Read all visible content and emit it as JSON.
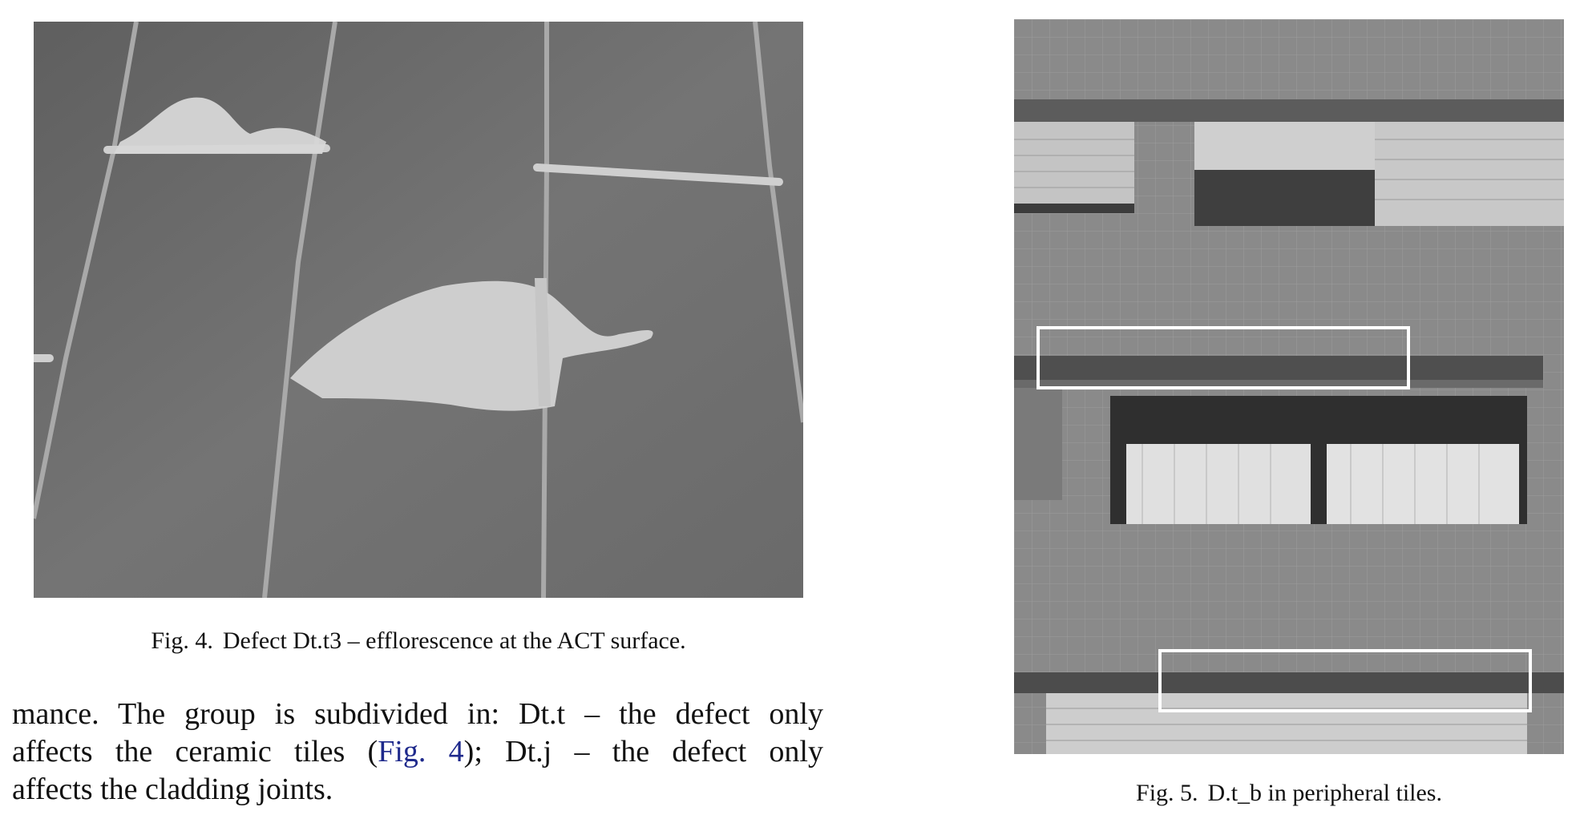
{
  "figures": [
    {
      "label": "Fig. 4.",
      "caption": "Defect Dt.t3 – efflorescence at the ACT surface."
    },
    {
      "label": "Fig. 5.",
      "caption": "D.t_b in peripheral tiles."
    }
  ],
  "body_text": {
    "line1": "mance. The group is subdivided in: Dt.t – the defect only",
    "line2_pre": "affects the ceramic tiles (",
    "line2_link": "Fig. 4",
    "line2_post": "); Dt.j – the defect only",
    "line3": "affects the cladding joints."
  },
  "colors": {
    "link": "#1f2a8c"
  }
}
